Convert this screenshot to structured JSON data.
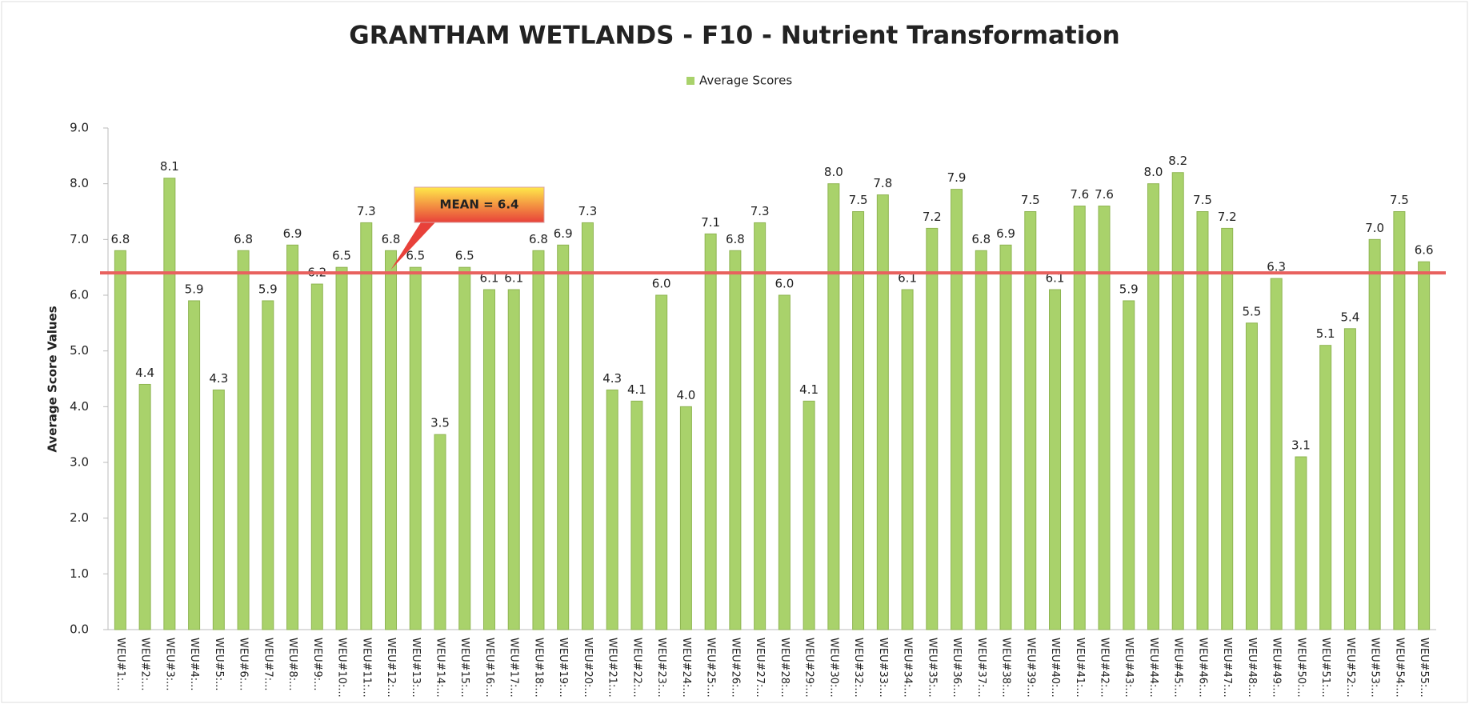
{
  "chart_data": {
    "type": "bar",
    "title": "GRANTHAM WETLANDS - F10 - Nutrient Transformation",
    "y_label": "Average Score Values",
    "legend": "top",
    "mean": {
      "value": 6.4,
      "label": "MEAN = 6.4"
    },
    "mean_color": "#e8615e",
    "categories": [
      "WEU#1:...",
      "WEU#2:...",
      "WEU#3:...",
      "WEU#4:...",
      "WEU#5:...",
      "WEU#6:...",
      "WEU#7:...",
      "WEU#8:...",
      "WEU#9:...",
      "WEU#10:...",
      "WEU#11:...",
      "WEU#12:...",
      "WEU#13:...",
      "WEU#14:...",
      "WEU#15:...",
      "WEU#16:...",
      "WEU#17:...",
      "WEU#18:...",
      "WEU#19:...",
      "WEU#20:...",
      "WEU#21:...",
      "WEU#22:...",
      "WEU#23:...",
      "WEU#24:...",
      "WEU#25:...",
      "WEU#26:...",
      "WEU#27:...",
      "WEU#28:...",
      "WEU#29:...",
      "WEU#30:...",
      "WEU#32:...",
      "WEU#33:...",
      "WEU#34:...",
      "WEU#35:...",
      "WEU#36:...",
      "WEU#37:...",
      "WEU#38:...",
      "WEU#39:...",
      "WEU#40:...",
      "WEU#41:...",
      "WEU#42:...",
      "WEU#43:...",
      "WEU#44:...",
      "WEU#45:...",
      "WEU#46:...",
      "WEU#47:...",
      "WEU#48:...",
      "WEU#49:...",
      "WEU#50:...",
      "WEU#51:...",
      "WEU#52:...",
      "WEU#53:...",
      "WEU#54:...",
      "WEU#55:..."
    ],
    "series": [
      {
        "name": "Average Scores",
        "color": "#a9d26b",
        "values": [
          6.8,
          4.4,
          8.1,
          5.9,
          4.3,
          6.8,
          5.9,
          6.9,
          6.2,
          6.5,
          7.3,
          6.8,
          6.5,
          3.5,
          6.5,
          6.1,
          6.1,
          6.8,
          6.9,
          7.3,
          4.3,
          4.1,
          6.0,
          4.0,
          7.1,
          6.8,
          7.3,
          6.0,
          4.1,
          8.0,
          7.5,
          7.8,
          6.1,
          7.2,
          7.9,
          6.8,
          6.9,
          7.5,
          6.1,
          7.6,
          7.6,
          5.9,
          8.0,
          8.2,
          7.5,
          7.2,
          5.5,
          6.3,
          3.1,
          5.1,
          5.4,
          7.0,
          7.5,
          6.6
        ],
        "value_labels": [
          "6.8",
          "4.4",
          "8.1",
          "5.9",
          "4.3",
          "6.8",
          "5.9",
          "6.9",
          "6.2",
          "6.5",
          "7.3",
          "6.8",
          "6.5",
          "3.5",
          "6.5",
          "6.1",
          "6.1",
          "6.8",
          "6.9",
          "7.3",
          "4.3",
          "4.1",
          "6.0",
          "4.0",
          "7.1",
          "6.8",
          "7.3",
          "6.0",
          "4.1",
          "8.0",
          "7.5",
          "7.8",
          "6.1",
          "7.2",
          "7.9",
          "6.8",
          "6.9",
          "7.5",
          "6.1",
          "7.6",
          "7.6",
          "5.9",
          "8.0",
          "8.2",
          "7.5",
          "7.2",
          "5.5",
          "6.3",
          "3.1",
          "5.1",
          "5.4",
          "7.0",
          "7.5",
          "6.6"
        ]
      }
    ],
    "ylim": [
      0,
      9
    ],
    "yticks": [
      {
        "value": 0,
        "label": "0.0"
      },
      {
        "value": 1,
        "label": "1.0"
      },
      {
        "value": 2,
        "label": "2.0"
      },
      {
        "value": 3,
        "label": "3.0"
      },
      {
        "value": 4,
        "label": "4.0"
      },
      {
        "value": 5,
        "label": "5.0"
      },
      {
        "value": 6,
        "label": "6.0"
      },
      {
        "value": 7,
        "label": "7.0"
      },
      {
        "value": 8,
        "label": "8.0"
      },
      {
        "value": 9,
        "label": "9.0"
      }
    ],
    "grid": false
  }
}
